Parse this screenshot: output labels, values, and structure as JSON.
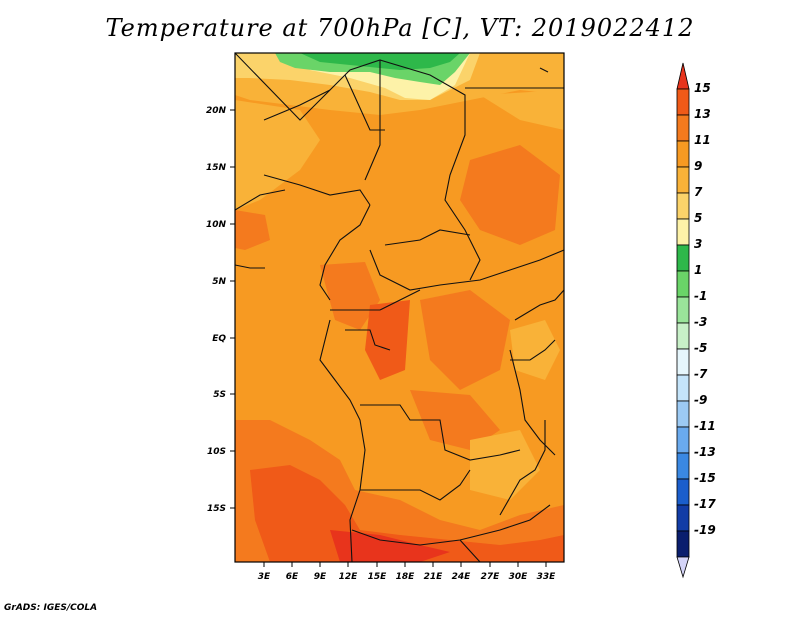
{
  "title": "Temperature at 700hPa [C], VT: 2019022412",
  "credit": "GrADS: IGES/COLA",
  "map": {
    "lat_labels": [
      "20N",
      "15N",
      "10N",
      "5N",
      "EQ",
      "5S",
      "10S",
      "15S"
    ],
    "lon_labels": [
      "3E",
      "6E",
      "9E",
      "12E",
      "15E",
      "18E",
      "21E",
      "24E",
      "27E",
      "30E",
      "33E"
    ]
  },
  "colorbar": {
    "levels": [
      "15",
      "13",
      "11",
      "9",
      "7",
      "5",
      "3",
      "1",
      "-1",
      "-3",
      "-5",
      "-7",
      "-9",
      "-11",
      "-13",
      "-15",
      "-17",
      "-19"
    ],
    "colors": [
      "#e8341c",
      "#f05a18",
      "#f47a1e",
      "#f79a22",
      "#f9b238",
      "#fbd36a",
      "#fdf2a8",
      "#2eb84a",
      "#6ad468",
      "#9ae49a",
      "#c8f0c8",
      "#e6f6fc",
      "#c4e4fa",
      "#9ccaf4",
      "#6aaaee",
      "#3a88e2",
      "#1a5ecc",
      "#123ca6",
      "#0a1e6e",
      "#d4d4f8"
    ]
  }
}
